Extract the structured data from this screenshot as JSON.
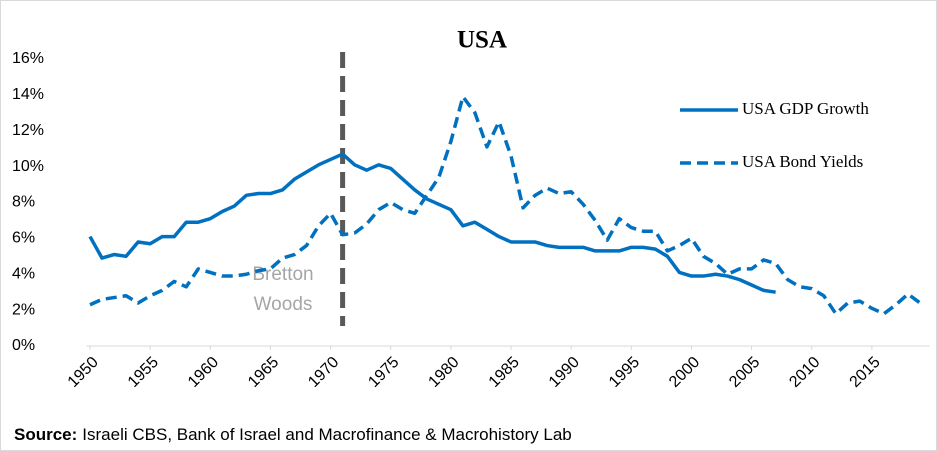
{
  "chart_data": {
    "type": "line",
    "title": "USA",
    "x": [
      1950,
      1951,
      1952,
      1953,
      1954,
      1955,
      1956,
      1957,
      1958,
      1959,
      1960,
      1961,
      1962,
      1963,
      1964,
      1965,
      1966,
      1967,
      1968,
      1969,
      1970,
      1971,
      1972,
      1973,
      1974,
      1975,
      1976,
      1977,
      1978,
      1979,
      1980,
      1981,
      1982,
      1983,
      1984,
      1985,
      1986,
      1987,
      1988,
      1989,
      1990,
      1991,
      1992,
      1993,
      1994,
      1995,
      1996,
      1997,
      1998,
      1999,
      2000,
      2001,
      2002,
      2003,
      2004,
      2005,
      2006,
      2007,
      2008,
      2009,
      2010,
      2011,
      2012,
      2013,
      2014,
      2015,
      2016,
      2017,
      2018,
      2019
    ],
    "series": [
      {
        "name": "USA GDP Growth",
        "color": "#0070c0",
        "dash": false,
        "values": [
          6.1,
          4.9,
          5.1,
          5.0,
          5.8,
          5.7,
          6.1,
          6.1,
          6.9,
          6.9,
          7.1,
          7.5,
          7.8,
          8.4,
          8.5,
          8.5,
          8.7,
          9.3,
          9.7,
          10.1,
          10.4,
          10.7,
          10.1,
          9.8,
          10.1,
          9.9,
          9.3,
          8.7,
          8.2,
          7.9,
          7.6,
          6.7,
          6.9,
          6.5,
          6.1,
          5.8,
          5.8,
          5.8,
          5.6,
          5.5,
          5.5,
          5.5,
          5.3,
          5.3,
          5.3,
          5.5,
          5.5,
          5.4,
          5.0,
          4.1,
          3.9,
          3.9,
          4.0,
          3.9,
          3.7,
          3.4,
          3.1,
          3.0,
          null,
          null,
          null,
          null,
          null,
          null,
          null,
          null,
          null,
          null,
          null,
          null
        ]
      },
      {
        "name": "USA Bond Yields",
        "color": "#0070c0",
        "dash": true,
        "values": [
          2.3,
          2.6,
          2.7,
          2.8,
          2.4,
          2.8,
          3.1,
          3.6,
          3.3,
          4.3,
          4.1,
          3.9,
          3.9,
          4.0,
          4.2,
          4.3,
          4.9,
          5.1,
          5.6,
          6.7,
          7.4,
          6.2,
          6.3,
          6.8,
          7.6,
          8.0,
          7.6,
          7.4,
          8.4,
          9.4,
          11.4,
          13.9,
          13.0,
          11.1,
          12.5,
          10.6,
          7.7,
          8.4,
          8.8,
          8.5,
          8.6,
          7.9,
          7.0,
          5.9,
          7.1,
          6.6,
          6.4,
          6.4,
          5.3,
          5.6,
          6.0,
          5.0,
          4.6,
          4.0,
          4.3,
          4.3,
          4.8,
          4.6,
          3.7,
          3.3,
          3.2,
          2.8,
          1.8,
          2.4,
          2.5,
          2.1,
          1.8,
          2.3,
          2.9,
          2.4
        ]
      }
    ],
    "xlim": [
      1950,
      2019
    ],
    "xticks": [
      1950,
      1955,
      1960,
      1965,
      1970,
      1975,
      1980,
      1985,
      1990,
      1995,
      2000,
      2005,
      2010,
      2015
    ],
    "ylim": [
      0,
      16
    ],
    "yticks": [
      {
        "value": 0,
        "label": "0%"
      },
      {
        "value": 2,
        "label": "2%"
      },
      {
        "value": 4,
        "label": "4%"
      },
      {
        "value": 6,
        "label": "6%"
      },
      {
        "value": 8,
        "label": "8%"
      },
      {
        "value": 10,
        "label": "10%"
      },
      {
        "value": 12,
        "label": "12%"
      },
      {
        "value": 14,
        "label": "14%"
      },
      {
        "value": 16,
        "label": "16%"
      }
    ],
    "grid": false,
    "legend": "right",
    "annotation": {
      "text": [
        "Bretton",
        "Woods"
      ],
      "x": 1971,
      "color": "#595959"
    },
    "source": {
      "label": "Source:",
      "text": "Israeli CBS, Bank of Israel and Macrofinance & Macrohistory Lab"
    }
  }
}
